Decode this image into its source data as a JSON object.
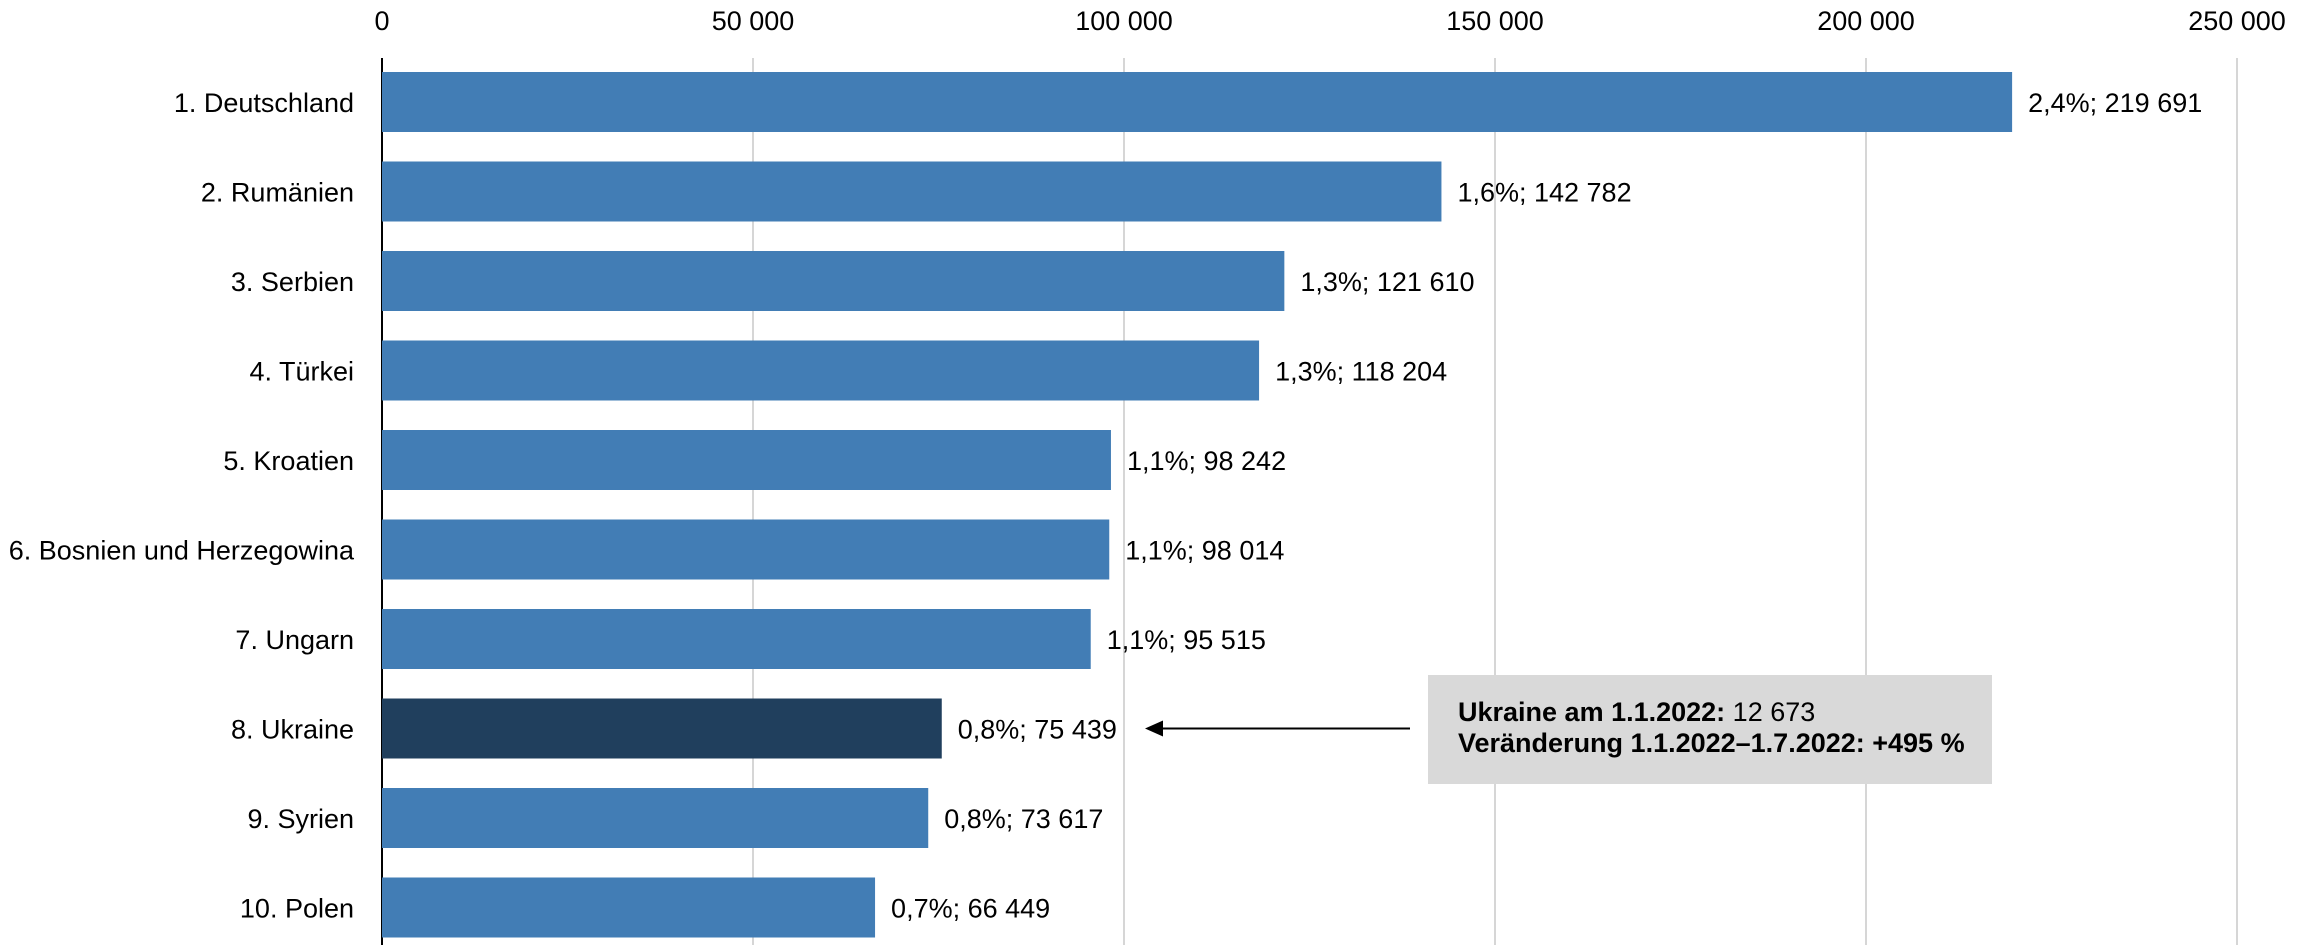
{
  "chart_data": {
    "type": "bar",
    "orientation": "horizontal",
    "categories": [
      "1. Deutschland",
      "2. Rumänien",
      "3. Serbien",
      "4. Türkei",
      "5. Kroatien",
      "6. Bosnien und Herzegowina",
      "7. Ungarn",
      "8. Ukraine",
      "9. Syrien",
      "10. Polen"
    ],
    "values": [
      219691,
      142782,
      121610,
      118204,
      98242,
      98014,
      95515,
      75439,
      73617,
      66449
    ],
    "data_labels": [
      "2,4%; 219 691",
      "1,6%; 142 782",
      "1,3%; 121 610",
      "1,3%; 118 204",
      "1,1%; 98 242",
      "1,1%; 98 014",
      "1,1%; 95 515",
      "0,8%; 75 439",
      "0,8%; 73 617",
      "0,7%; 66 449"
    ],
    "xlim": [
      0,
      250000
    ],
    "x_ticks": [
      0,
      50000,
      100000,
      150000,
      200000,
      250000
    ],
    "x_tick_labels": [
      "0",
      "50 000",
      "100 000",
      "150 000",
      "200 000",
      "250 000"
    ],
    "x_axis_position": "top",
    "grid": "vertical",
    "title": "",
    "xlabel": "",
    "ylabel": "",
    "highlight_category": "8. Ukraine",
    "colors": {
      "bar": "#427db5",
      "highlight": "#203f5d",
      "grid": "#c8c8c8",
      "axis": "#000000"
    }
  },
  "annotation": {
    "line1_bold": "Ukraine am 1.1.2022:",
    "line1_value": " 12 673",
    "line2_bold": "Veränderung 1.1.2022–1.7.2022: +495 %",
    "points_to": "8. Ukraine"
  }
}
